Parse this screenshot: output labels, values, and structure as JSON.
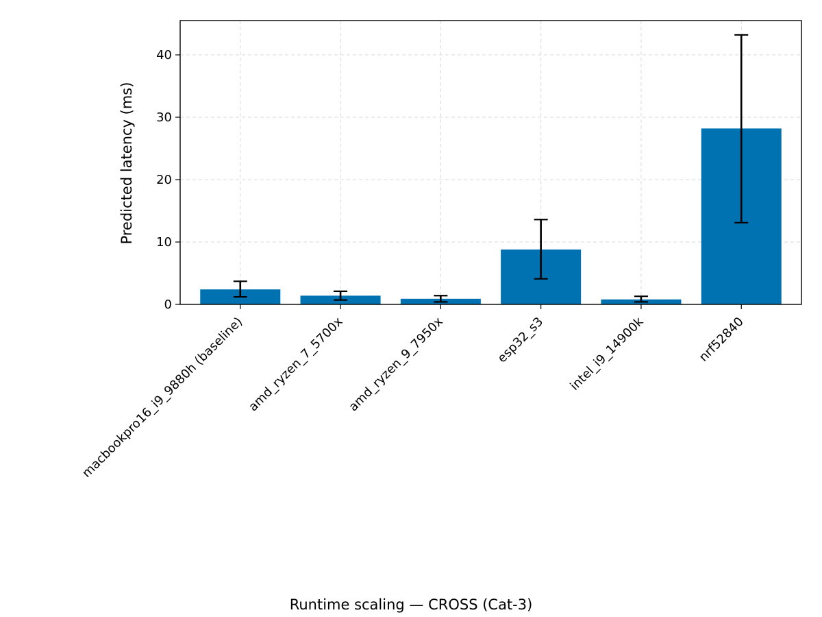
{
  "chart_data": {
    "type": "bar",
    "title": "",
    "xlabel": "Runtime scaling — CROSS (Cat-3)",
    "ylabel": "Predicted latency (ms)",
    "ylim": [
      0,
      45.5
    ],
    "yticks": [
      0,
      10,
      20,
      30,
      40
    ],
    "grid": true,
    "bar_color": "#0072b2",
    "errorbar_color": "#000000",
    "categories": [
      "macbookpro16_i9_9880h (baseline)",
      "amd_ryzen_7_5700x",
      "amd_ryzen_9_7950x",
      "esp32_s3",
      "intel_i9_14900k",
      "nrf52840"
    ],
    "values": [
      2.4,
      1.4,
      0.9,
      8.8,
      0.8,
      28.2
    ],
    "error_low": [
      1.2,
      0.7,
      0.4,
      4.1,
      0.4,
      13.1
    ],
    "error_high": [
      3.7,
      2.1,
      1.4,
      13.6,
      1.3,
      43.2
    ]
  }
}
